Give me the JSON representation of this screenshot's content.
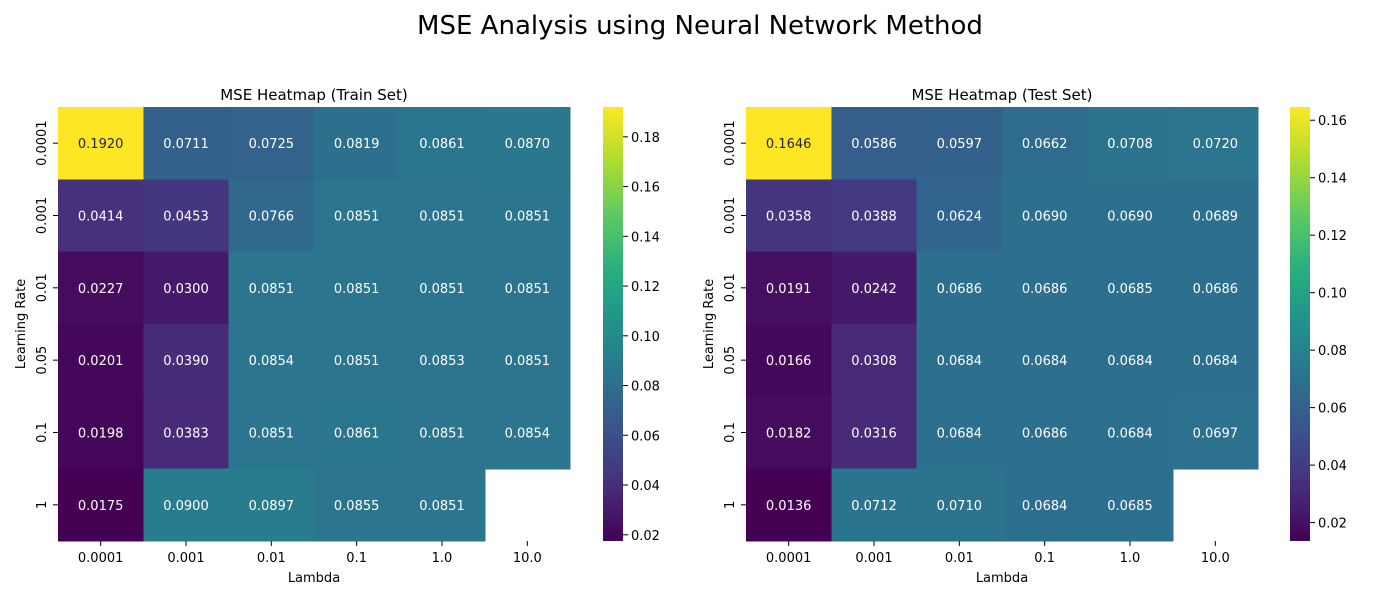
{
  "figure": {
    "suptitle": "MSE Analysis using Neural Network Method"
  },
  "chart_data": [
    {
      "type": "heatmap",
      "title": "MSE Heatmap (Train Set)",
      "xlabel": "Lambda",
      "ylabel": "Learning Rate",
      "x_categories": [
        "0.0001",
        "0.001",
        "0.01",
        "0.1",
        "1.0",
        "10.0"
      ],
      "y_categories": [
        "0.0001",
        "0.001",
        "0.01",
        "0.05",
        "0.1",
        "1"
      ],
      "cell_labels": [
        [
          "0.1920",
          "0.0711",
          "0.0725",
          "0.0819",
          "0.0861",
          "0.0870"
        ],
        [
          "0.0414",
          "0.0453",
          "0.0766",
          "0.0851",
          "0.0851",
          "0.0851"
        ],
        [
          "0.0227",
          "0.0300",
          "0.0851",
          "0.0851",
          "0.0851",
          "0.0851"
        ],
        [
          "0.0201",
          "0.0390",
          "0.0854",
          "0.0851",
          "0.0853",
          "0.0851"
        ],
        [
          "0.0198",
          "0.0383",
          "0.0851",
          "0.0861",
          "0.0851",
          "0.0854"
        ],
        [
          "0.0175",
          "0.0900",
          "0.0897",
          "0.0855",
          "0.0851",
          ""
        ]
      ],
      "values": [
        [
          0.192,
          0.0711,
          0.0725,
          0.0819,
          0.0861,
          0.087
        ],
        [
          0.0414,
          0.0453,
          0.0766,
          0.0851,
          0.0851,
          0.0851
        ],
        [
          0.0227,
          0.03,
          0.0851,
          0.0851,
          0.0851,
          0.0851
        ],
        [
          0.0201,
          0.039,
          0.0854,
          0.0851,
          0.0853,
          0.0851
        ],
        [
          0.0198,
          0.0383,
          0.0851,
          0.0861,
          0.0851,
          0.0854
        ],
        [
          0.0175,
          0.09,
          0.0897,
          0.0855,
          0.0851,
          null
        ]
      ],
      "colormap": "viridis",
      "vmin": 0.0175,
      "vmax": 0.192,
      "colorbar_ticks": [
        "0.02",
        "0.04",
        "0.06",
        "0.08",
        "0.10",
        "0.12",
        "0.14",
        "0.16",
        "0.18"
      ]
    },
    {
      "type": "heatmap",
      "title": "MSE Heatmap (Test Set)",
      "xlabel": "Lambda",
      "ylabel": "Learning Rate",
      "x_categories": [
        "0.0001",
        "0.001",
        "0.01",
        "0.1",
        "1.0",
        "10.0"
      ],
      "y_categories": [
        "0.0001",
        "0.001",
        "0.01",
        "0.05",
        "0.1",
        "1"
      ],
      "cell_labels": [
        [
          "0.1646",
          "0.0586",
          "0.0597",
          "0.0662",
          "0.0708",
          "0.0720"
        ],
        [
          "0.0358",
          "0.0388",
          "0.0624",
          "0.0690",
          "0.0690",
          "0.0689"
        ],
        [
          "0.0191",
          "0.0242",
          "0.0686",
          "0.0686",
          "0.0685",
          "0.0686"
        ],
        [
          "0.0166",
          "0.0308",
          "0.0684",
          "0.0684",
          "0.0684",
          "0.0684"
        ],
        [
          "0.0182",
          "0.0316",
          "0.0684",
          "0.0686",
          "0.0684",
          "0.0697"
        ],
        [
          "0.0136",
          "0.0712",
          "0.0710",
          "0.0684",
          "0.0685",
          ""
        ]
      ],
      "values": [
        [
          0.1646,
          0.0586,
          0.0597,
          0.0662,
          0.0708,
          0.072
        ],
        [
          0.0358,
          0.0388,
          0.0624,
          0.069,
          0.069,
          0.0689
        ],
        [
          0.0191,
          0.0242,
          0.0686,
          0.0686,
          0.0685,
          0.0686
        ],
        [
          0.0166,
          0.0308,
          0.0684,
          0.0684,
          0.0684,
          0.0684
        ],
        [
          0.0182,
          0.0316,
          0.0684,
          0.0686,
          0.0684,
          0.0697
        ],
        [
          0.0136,
          0.0712,
          0.071,
          0.0684,
          0.0685,
          null
        ]
      ],
      "colormap": "viridis",
      "vmin": 0.0136,
      "vmax": 0.1646,
      "colorbar_ticks": [
        "0.02",
        "0.04",
        "0.06",
        "0.08",
        "0.10",
        "0.12",
        "0.14",
        "0.16"
      ]
    }
  ]
}
